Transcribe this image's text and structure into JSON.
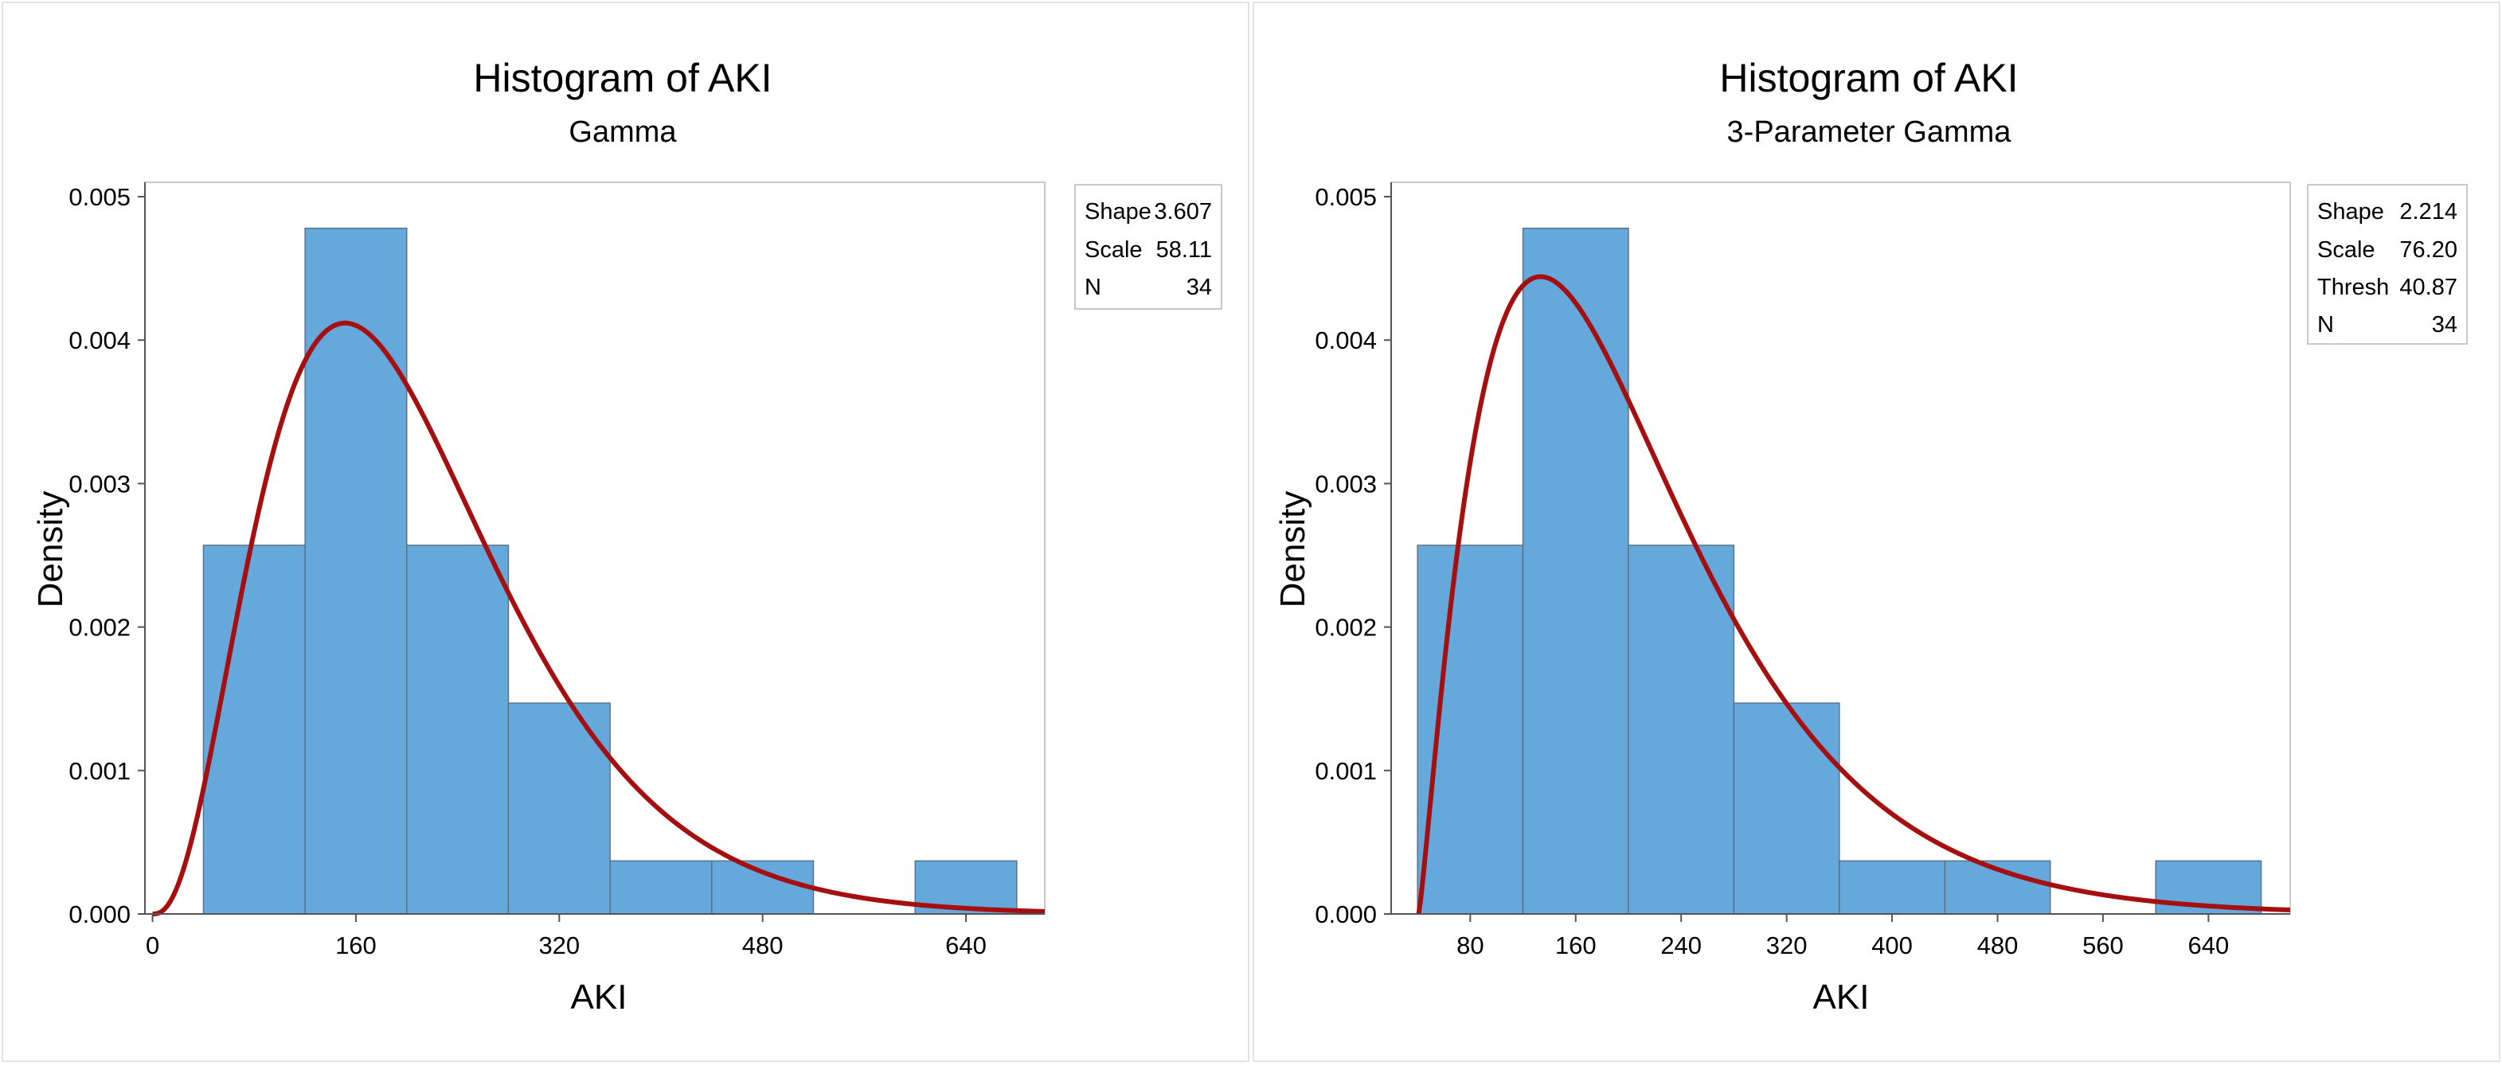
{
  "colors": {
    "bar_fill": "#64a8dc",
    "bar_stroke": "#5a6e80",
    "curve": "#a50f0f",
    "frame": "#c8c8c8",
    "axis": "#555555",
    "text": "#000000"
  },
  "panels": [
    {
      "title": "Histogram of AKI",
      "subtitle": "Gamma",
      "legend": [
        {
          "label": "Shape",
          "value": "3.607"
        },
        {
          "label": "Scale",
          "value": "58.11"
        },
        {
          "label": "N",
          "value": "34"
        }
      ]
    },
    {
      "title": "Histogram of AKI",
      "subtitle": "3-Parameter Gamma",
      "legend": [
        {
          "label": "Shape",
          "value": "2.214"
        },
        {
          "label": "Scale",
          "value": "76.20"
        },
        {
          "label": "Thresh",
          "value": "40.87"
        },
        {
          "label": "N",
          "value": "34"
        }
      ]
    }
  ],
  "chart_data": [
    {
      "type": "bar",
      "title": "Histogram of AKI",
      "subtitle": "Gamma",
      "xlabel": "AKI",
      "ylabel": "Density",
      "xlim": [
        -6,
        702
      ],
      "ylim": [
        0,
        0.0051
      ],
      "xticks": [
        0,
        160,
        320,
        480,
        640
      ],
      "xtick_labels": [
        "0",
        "160",
        "320",
        "480",
        "640"
      ],
      "yticks": [
        0,
        0.001,
        0.002,
        0.003,
        0.004,
        0.005
      ],
      "ytick_labels": [
        "0.000",
        "0.001",
        "0.002",
        "0.003",
        "0.004",
        "0.005"
      ],
      "bins": [
        {
          "x0": 40,
          "x1": 120,
          "density": 0.00257
        },
        {
          "x0": 120,
          "x1": 200,
          "density": 0.00478
        },
        {
          "x0": 200,
          "x1": 280,
          "density": 0.00257
        },
        {
          "x0": 280,
          "x1": 360,
          "density": 0.00147
        },
        {
          "x0": 360,
          "x1": 440,
          "density": 0.00037
        },
        {
          "x0": 440,
          "x1": 520,
          "density": 0.00037
        },
        {
          "x0": 600,
          "x1": 680,
          "density": 0.00037
        }
      ],
      "fit": {
        "distribution": "gamma",
        "shape": 3.607,
        "scale": 58.11,
        "threshold": 0,
        "n": 34
      }
    },
    {
      "type": "bar",
      "title": "Histogram of AKI",
      "subtitle": "3-Parameter Gamma",
      "xlabel": "AKI",
      "ylabel": "Density",
      "xlim": [
        20,
        702
      ],
      "ylim": [
        0,
        0.0051
      ],
      "xticks": [
        80,
        160,
        240,
        320,
        400,
        480,
        560,
        640
      ],
      "xtick_labels": [
        "80",
        "160",
        "240",
        "320",
        "400",
        "480",
        "560",
        "640"
      ],
      "yticks": [
        0,
        0.001,
        0.002,
        0.003,
        0.004,
        0.005
      ],
      "ytick_labels": [
        "0.000",
        "0.001",
        "0.002",
        "0.003",
        "0.004",
        "0.005"
      ],
      "bins": [
        {
          "x0": 40,
          "x1": 120,
          "density": 0.00257
        },
        {
          "x0": 120,
          "x1": 200,
          "density": 0.00478
        },
        {
          "x0": 200,
          "x1": 280,
          "density": 0.00257
        },
        {
          "x0": 280,
          "x1": 360,
          "density": 0.00147
        },
        {
          "x0": 360,
          "x1": 440,
          "density": 0.00037
        },
        {
          "x0": 440,
          "x1": 520,
          "density": 0.00037
        },
        {
          "x0": 600,
          "x1": 680,
          "density": 0.00037
        }
      ],
      "fit": {
        "distribution": "gamma",
        "shape": 2.214,
        "scale": 76.2,
        "threshold": 40.87,
        "n": 34
      }
    }
  ]
}
